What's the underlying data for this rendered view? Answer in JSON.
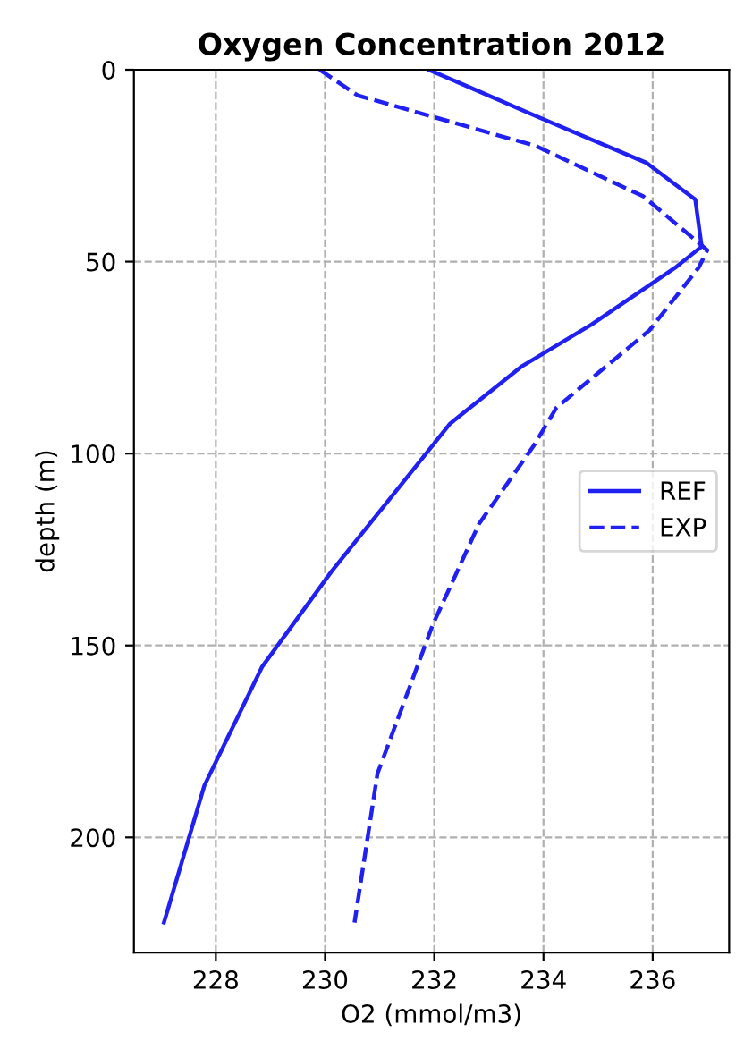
{
  "chart_data": {
    "type": "line",
    "title": "Oxygen Concentration 2012",
    "xlabel": "O2 (mmol/m3)",
    "ylabel": "depth (m)",
    "xlim": [
      226.5,
      237.4
    ],
    "xticks": [
      228,
      230,
      232,
      234,
      236
    ],
    "ylim": [
      230,
      0
    ],
    "yticks": [
      0,
      50,
      100,
      150,
      200
    ],
    "grid": true,
    "legend": "right",
    "series": [
      {
        "name": "REF",
        "color": "#2020f0",
        "line_style": "solid",
        "x": [
          231.9,
          233.87,
          235.88,
          236.78,
          236.89,
          236.9,
          236.41,
          234.88,
          233.61,
          232.29,
          230.12,
          228.85,
          227.79,
          227.05
        ],
        "values": [
          0,
          12.1,
          24.2,
          33.8,
          45.4,
          46,
          51.6,
          66.4,
          77.2,
          92.2,
          130.7,
          155.5,
          186.5,
          222.2
        ]
      },
      {
        "name": "EXP",
        "color": "#2020f0",
        "line_style": "dashed",
        "x": [
          229.9,
          230.6,
          233.87,
          235.83,
          237.0,
          236.84,
          235.94,
          234.24,
          233.82,
          232.82,
          231.97,
          230.96,
          230.54
        ],
        "values": [
          0,
          6.7,
          19.9,
          33,
          47,
          51.6,
          67.9,
          88,
          98,
          118.3,
          144.7,
          183.4,
          222.2
        ]
      }
    ]
  }
}
